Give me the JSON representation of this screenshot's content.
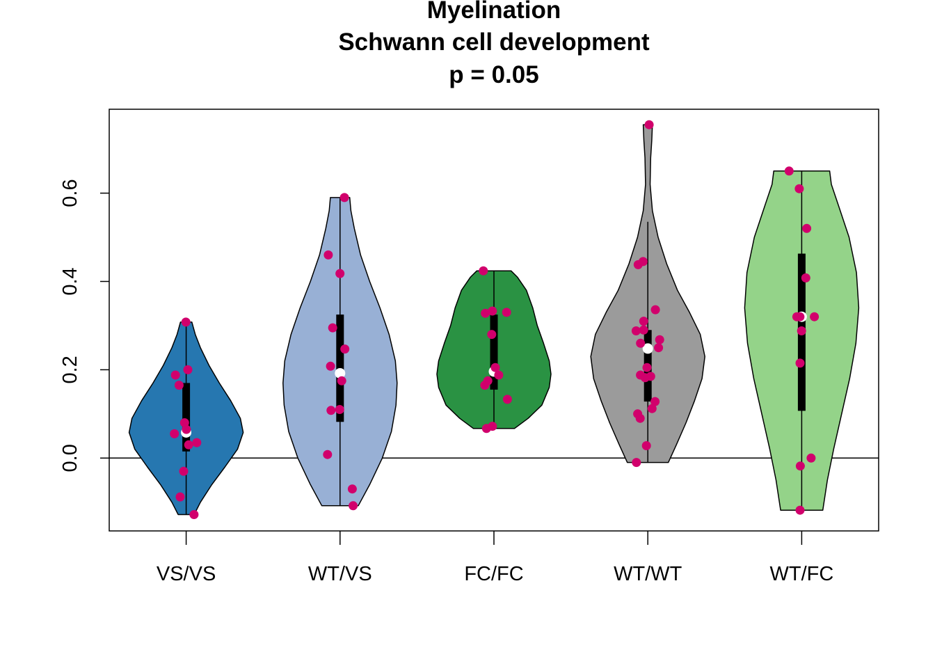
{
  "chart_data": {
    "type": "violin",
    "title_lines": [
      "Myelination",
      "Schwann cell development",
      "p = 0.05"
    ],
    "xlabel": "",
    "ylabel": "",
    "ylim": [
      -0.165,
      0.79
    ],
    "yticks": [
      0.0,
      0.2,
      0.4,
      0.6
    ],
    "ytick_labels": [
      "0.0",
      "0.2",
      "0.4",
      "0.6"
    ],
    "reference_line_y": 0,
    "point_color": "#D1006C",
    "median_color": "#ffffff",
    "groups": [
      {
        "name": "VS/VS",
        "fill": "#2677B0",
        "y_min": -0.128,
        "y_max": 0.308,
        "q1": 0.015,
        "q3": 0.17,
        "whisker_low": -0.128,
        "whisker_high": 0.308,
        "median": 0.058,
        "density_profile": [
          [
            -0.128,
            0.14
          ],
          [
            -0.1,
            0.25
          ],
          [
            -0.06,
            0.45
          ],
          [
            -0.02,
            0.68
          ],
          [
            0.02,
            0.9
          ],
          [
            0.058,
            1.0
          ],
          [
            0.09,
            0.95
          ],
          [
            0.13,
            0.78
          ],
          [
            0.17,
            0.58
          ],
          [
            0.21,
            0.4
          ],
          [
            0.25,
            0.25
          ],
          [
            0.28,
            0.16
          ],
          [
            0.308,
            0.1
          ]
        ],
        "points": [
          0.308,
          0.2,
          0.188,
          0.165,
          0.08,
          0.065,
          0.055,
          0.035,
          0.03,
          -0.03,
          -0.088,
          -0.128
        ]
      },
      {
        "name": "WT/VS",
        "fill": "#98B0D5",
        "y_min": -0.108,
        "y_max": 0.59,
        "q1": 0.082,
        "q3": 0.325,
        "whisker_low": -0.108,
        "whisker_high": 0.59,
        "median": 0.192,
        "density_profile": [
          [
            -0.108,
            0.32
          ],
          [
            -0.06,
            0.52
          ],
          [
            0.0,
            0.74
          ],
          [
            0.06,
            0.9
          ],
          [
            0.12,
            0.98
          ],
          [
            0.17,
            1.0
          ],
          [
            0.22,
            0.97
          ],
          [
            0.28,
            0.86
          ],
          [
            0.34,
            0.7
          ],
          [
            0.4,
            0.52
          ],
          [
            0.46,
            0.36
          ],
          [
            0.52,
            0.25
          ],
          [
            0.56,
            0.19
          ],
          [
            0.59,
            0.17
          ]
        ],
        "points": [
          0.59,
          0.46,
          0.418,
          0.295,
          0.247,
          0.208,
          0.175,
          0.11,
          0.108,
          0.008,
          -0.07,
          -0.108
        ]
      },
      {
        "name": "FC/FC",
        "fill": "#2A9243",
        "y_min": 0.067,
        "y_max": 0.424,
        "q1": 0.155,
        "q3": 0.325,
        "whisker_low": 0.067,
        "whisker_high": 0.424,
        "median": 0.196,
        "density_profile": [
          [
            0.067,
            0.36
          ],
          [
            0.09,
            0.6
          ],
          [
            0.12,
            0.84
          ],
          [
            0.16,
            0.97
          ],
          [
            0.19,
            1.0
          ],
          [
            0.22,
            0.97
          ],
          [
            0.26,
            0.87
          ],
          [
            0.3,
            0.76
          ],
          [
            0.34,
            0.68
          ],
          [
            0.38,
            0.57
          ],
          [
            0.41,
            0.41
          ],
          [
            0.424,
            0.3
          ]
        ],
        "points": [
          0.424,
          0.333,
          0.33,
          0.328,
          0.28,
          0.205,
          0.188,
          0.175,
          0.165,
          0.133,
          0.072,
          0.067
        ]
      },
      {
        "name": "WT/WT",
        "fill": "#9B9B9B",
        "y_min": -0.01,
        "y_max": 0.755,
        "q1": 0.128,
        "q3": 0.29,
        "whisker_low": -0.01,
        "whisker_high": 0.535,
        "median": 0.248,
        "density_profile": [
          [
            -0.01,
            0.36
          ],
          [
            0.03,
            0.5
          ],
          [
            0.08,
            0.67
          ],
          [
            0.13,
            0.82
          ],
          [
            0.18,
            0.95
          ],
          [
            0.23,
            1.0
          ],
          [
            0.28,
            0.92
          ],
          [
            0.33,
            0.73
          ],
          [
            0.38,
            0.52
          ],
          [
            0.44,
            0.33
          ],
          [
            0.5,
            0.18
          ],
          [
            0.56,
            0.08
          ],
          [
            0.62,
            0.04
          ],
          [
            0.68,
            0.05
          ],
          [
            0.72,
            0.07
          ],
          [
            0.755,
            0.08
          ]
        ],
        "points": [
          0.755,
          0.445,
          0.438,
          0.336,
          0.31,
          0.29,
          0.288,
          0.268,
          0.26,
          0.25,
          0.205,
          0.188,
          0.185,
          0.182,
          0.128,
          0.112,
          0.1,
          0.09,
          0.028,
          -0.01
        ]
      },
      {
        "name": "WT/FC",
        "fill": "#94D389",
        "y_min": -0.118,
        "y_max": 0.65,
        "q1": 0.107,
        "q3": 0.463,
        "whisker_low": -0.118,
        "whisker_high": 0.65,
        "median": 0.32,
        "density_profile": [
          [
            -0.118,
            0.37
          ],
          [
            -0.05,
            0.45
          ],
          [
            0.02,
            0.56
          ],
          [
            0.1,
            0.7
          ],
          [
            0.18,
            0.84
          ],
          [
            0.26,
            0.95
          ],
          [
            0.34,
            1.0
          ],
          [
            0.42,
            0.96
          ],
          [
            0.5,
            0.83
          ],
          [
            0.57,
            0.65
          ],
          [
            0.62,
            0.52
          ],
          [
            0.65,
            0.49
          ]
        ],
        "points": [
          0.65,
          0.61,
          0.52,
          0.408,
          0.32,
          0.32,
          0.32,
          0.288,
          0.215,
          0.0,
          -0.018,
          -0.118
        ]
      }
    ]
  }
}
